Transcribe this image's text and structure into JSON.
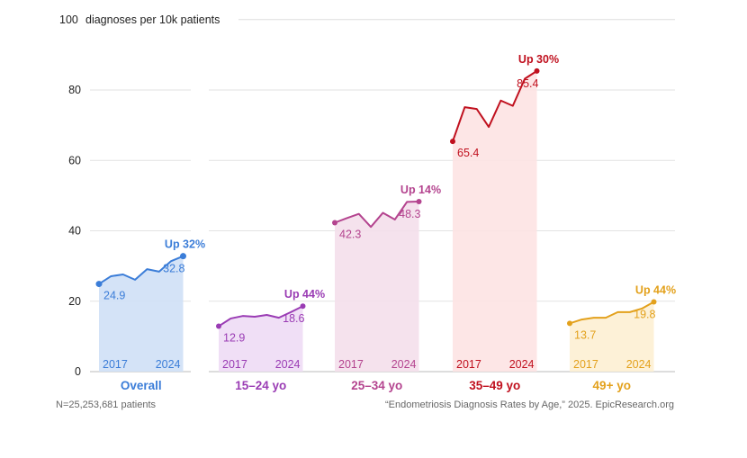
{
  "chart_data": {
    "type": "line",
    "ylabel": "diagnoses per 10k patients",
    "ylim": [
      0,
      100
    ],
    "yticks": [
      0,
      20,
      40,
      60,
      80,
      100
    ],
    "grid": true,
    "x_start_label": "2017",
    "x_end_label": "2024",
    "years": [
      2017,
      2018,
      2019,
      2020,
      2021,
      2022,
      2023,
      2024
    ],
    "series": [
      {
        "name": "Overall",
        "color": "#3b7dd8",
        "fill": "#cfe0f6",
        "change": "Up 32%",
        "start_label": "24.9",
        "end_label": "32.8",
        "values": [
          24.9,
          27.1,
          27.6,
          26.1,
          29.1,
          28.4,
          31.4,
          32.8
        ]
      },
      {
        "name": "15–24 yo",
        "color": "#9a3cb4",
        "fill": "#eedcf5",
        "change": "Up 44%",
        "start_label": "12.9",
        "end_label": "18.6",
        "values": [
          12.9,
          15.1,
          15.8,
          15.6,
          16.1,
          15.3,
          16.9,
          18.6
        ]
      },
      {
        "name": "25–34 yo",
        "color": "#b4448f",
        "fill": "#f4dfeb",
        "change": "Up 14%",
        "start_label": "42.3",
        "end_label": "48.3",
        "values": [
          42.3,
          43.6,
          44.8,
          41.1,
          45.1,
          43.2,
          48.2,
          48.3
        ]
      },
      {
        "name": "35–49 yo",
        "color": "#c0101e",
        "fill": "#fde3e3",
        "change": "Up 30%",
        "start_label": "65.4",
        "end_label": "85.4",
        "values": [
          65.4,
          75.1,
          74.6,
          69.5,
          77.0,
          75.5,
          83.2,
          85.4
        ]
      },
      {
        "name": "49+ yo",
        "color": "#e3a11c",
        "fill": "#fdefd3",
        "change": "Up 44%",
        "start_label": "13.7",
        "end_label": "19.8",
        "values": [
          13.7,
          14.8,
          15.3,
          15.3,
          16.9,
          16.9,
          17.9,
          19.8
        ]
      }
    ]
  },
  "footer": {
    "note": "N=25,253,681 patients",
    "source": "“Endometriosis Diagnosis Rates by Age,” 2025. EpicResearch.org"
  }
}
